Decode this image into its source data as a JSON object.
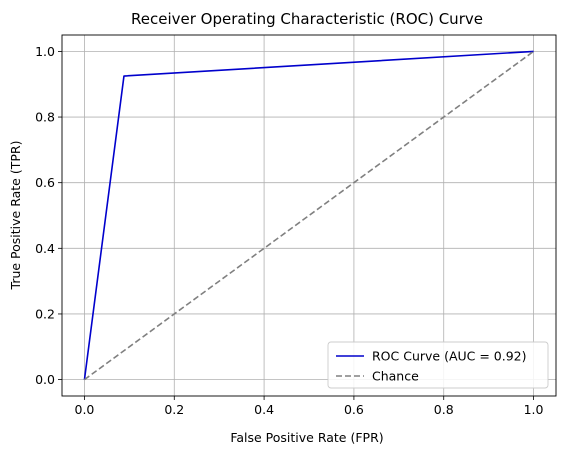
{
  "chart_data": {
    "type": "line",
    "title": "Receiver Operating Characteristic (ROC) Curve",
    "xlabel": "False Positive Rate (FPR)",
    "ylabel": "True Positive Rate (TPR)",
    "xlim": [
      -0.05,
      1.05
    ],
    "ylim": [
      -0.05,
      1.05
    ],
    "xticks": [
      0.0,
      0.2,
      0.4,
      0.6,
      0.8,
      1.0
    ],
    "yticks": [
      0.0,
      0.2,
      0.4,
      0.6,
      0.8,
      1.0
    ],
    "xtick_labels": [
      "0.0",
      "0.2",
      "0.4",
      "0.6",
      "0.8",
      "1.0"
    ],
    "ytick_labels": [
      "0.0",
      "0.2",
      "0.4",
      "0.6",
      "0.8",
      "1.0"
    ],
    "grid": true,
    "legend_position": "bottom-right",
    "series": [
      {
        "name": "ROC Curve (AUC = 0.92)",
        "color": "#0000cc",
        "style": "solid",
        "x": [
          0.0,
          0.088,
          1.0
        ],
        "y": [
          0.0,
          0.925,
          1.0
        ]
      },
      {
        "name": "Chance",
        "color": "#808080",
        "style": "dashed",
        "x": [
          0.0,
          1.0
        ],
        "y": [
          0.0,
          1.0
        ]
      }
    ]
  }
}
